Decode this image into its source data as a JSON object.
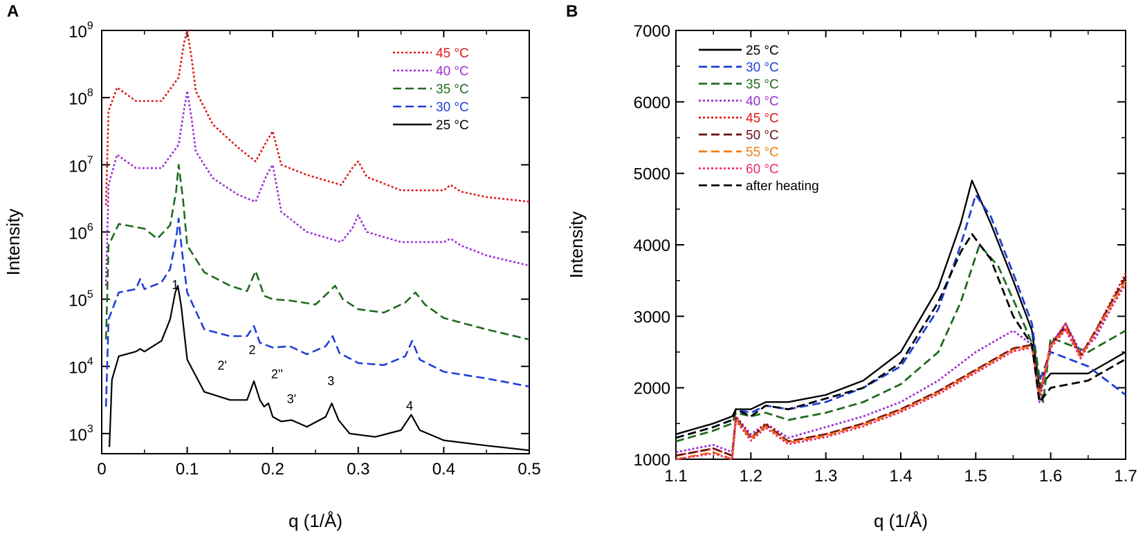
{
  "chart_data": [
    {
      "type": "line",
      "panel": "A",
      "xlabel": "q (1/Å)",
      "ylabel": "Intensity",
      "xlim": [
        0,
        0.5
      ],
      "ylim_log10": [
        2.7,
        9
      ],
      "yscale": "log",
      "xticks": [
        "0",
        "0.1",
        "0.2",
        "0.3",
        "0.4",
        "0.5"
      ],
      "yticks_exp": [
        "3",
        "4",
        "5",
        "6",
        "7",
        "8",
        "9"
      ],
      "ytick_base": "10",
      "legend": [
        "45 °C",
        "40 °C",
        "35 °C",
        "30 °C",
        "25 °C"
      ],
      "peak_labels": [
        {
          "text": "1",
          "q": 0.086,
          "log10": 5.15
        },
        {
          "text": "2'",
          "q": 0.141,
          "log10": 3.95
        },
        {
          "text": "2",
          "q": 0.176,
          "log10": 4.18
        },
        {
          "text": "2''",
          "q": 0.205,
          "log10": 3.82
        },
        {
          "text": "3'",
          "q": 0.222,
          "log10": 3.45
        },
        {
          "text": "3",
          "q": 0.268,
          "log10": 3.72
        },
        {
          "text": "4",
          "q": 0.36,
          "log10": 3.35
        }
      ],
      "series": [
        {
          "name": "25 °C",
          "color": "#000000",
          "dash": "solid",
          "q": [
            0.009,
            0.012,
            0.02,
            0.04,
            0.045,
            0.05,
            0.07,
            0.08,
            0.086,
            0.089,
            0.093,
            0.1,
            0.12,
            0.15,
            0.17,
            0.178,
            0.185,
            0.19,
            0.195,
            0.2,
            0.21,
            0.222,
            0.24,
            0.262,
            0.269,
            0.277,
            0.29,
            0.32,
            0.35,
            0.362,
            0.372,
            0.4,
            0.45,
            0.5
          ],
          "log10": [
            2.8,
            3.8,
            4.15,
            4.22,
            4.26,
            4.22,
            4.38,
            4.7,
            5.1,
            5.2,
            4.9,
            4.1,
            3.62,
            3.5,
            3.5,
            3.78,
            3.5,
            3.4,
            3.45,
            3.25,
            3.18,
            3.2,
            3.1,
            3.25,
            3.45,
            3.2,
            3.0,
            2.95,
            3.05,
            3.28,
            3.05,
            2.9,
            2.82,
            2.75
          ]
        },
        {
          "name": "30 °C",
          "color": "#1f3fd6",
          "dash": "dashed",
          "q": [
            0.005,
            0.008,
            0.02,
            0.04,
            0.045,
            0.05,
            0.07,
            0.08,
            0.087,
            0.09,
            0.094,
            0.1,
            0.12,
            0.15,
            0.17,
            0.178,
            0.185,
            0.2,
            0.22,
            0.24,
            0.262,
            0.27,
            0.278,
            0.3,
            0.33,
            0.355,
            0.363,
            0.372,
            0.4,
            0.45,
            0.5
          ],
          "log10": [
            3.4,
            4.7,
            5.1,
            5.15,
            5.3,
            5.15,
            5.25,
            5.45,
            5.9,
            6.2,
            5.7,
            5.1,
            4.55,
            4.45,
            4.45,
            4.6,
            4.35,
            4.28,
            4.3,
            4.18,
            4.3,
            4.45,
            4.2,
            4.05,
            4.02,
            4.15,
            4.38,
            4.1,
            3.92,
            3.82,
            3.7
          ]
        },
        {
          "name": "35 °C",
          "color": "#1e6a1e",
          "dash": "dashed",
          "q": [
            0.005,
            0.008,
            0.02,
            0.05,
            0.065,
            0.08,
            0.087,
            0.09,
            0.095,
            0.1,
            0.12,
            0.15,
            0.17,
            0.18,
            0.19,
            0.2,
            0.22,
            0.25,
            0.265,
            0.273,
            0.282,
            0.3,
            0.33,
            0.355,
            0.367,
            0.378,
            0.4,
            0.45,
            0.5
          ],
          "log10": [
            4.4,
            5.8,
            6.12,
            6.05,
            5.9,
            6.1,
            6.6,
            7.0,
            6.5,
            5.8,
            5.4,
            5.2,
            5.12,
            5.42,
            5.05,
            5.0,
            4.98,
            4.92,
            5.1,
            5.2,
            5.0,
            4.85,
            4.8,
            4.95,
            5.1,
            4.92,
            4.72,
            4.55,
            4.4
          ]
        },
        {
          "name": "40 °C",
          "color": "#9b2fd6",
          "dash": "dotted",
          "q": [
            0.005,
            0.008,
            0.018,
            0.04,
            0.07,
            0.09,
            0.096,
            0.1,
            0.105,
            0.11,
            0.13,
            0.16,
            0.18,
            0.193,
            0.2,
            0.21,
            0.24,
            0.28,
            0.293,
            0.3,
            0.31,
            0.35,
            0.4,
            0.408,
            0.42,
            0.45,
            0.5
          ],
          "log10": [
            5.2,
            6.7,
            7.15,
            6.95,
            6.95,
            7.3,
            7.8,
            8.1,
            7.7,
            7.2,
            6.8,
            6.55,
            6.45,
            6.85,
            7.0,
            6.3,
            6.0,
            5.85,
            6.05,
            6.25,
            6.0,
            5.85,
            5.85,
            5.9,
            5.8,
            5.65,
            5.5
          ]
        },
        {
          "name": "45 °C",
          "color": "#e01818",
          "dash": "dotted",
          "q": [
            0.005,
            0.008,
            0.018,
            0.04,
            0.07,
            0.09,
            0.096,
            0.1,
            0.105,
            0.11,
            0.13,
            0.16,
            0.18,
            0.193,
            0.2,
            0.21,
            0.24,
            0.28,
            0.293,
            0.3,
            0.31,
            0.35,
            0.4,
            0.408,
            0.42,
            0.45,
            0.5
          ],
          "log10": [
            6.4,
            7.8,
            8.15,
            7.95,
            7.95,
            8.3,
            8.8,
            9.0,
            8.6,
            8.1,
            7.6,
            7.25,
            7.05,
            7.35,
            7.5,
            7.0,
            6.85,
            6.7,
            6.95,
            7.05,
            6.82,
            6.62,
            6.62,
            6.7,
            6.6,
            6.52,
            6.45
          ]
        }
      ]
    },
    {
      "type": "line",
      "panel": "B",
      "xlabel": "q (1/Å)",
      "ylabel": "Intensity",
      "xlim": [
        1.1,
        1.7
      ],
      "ylim": [
        1000,
        7000
      ],
      "xticks": [
        "1.1",
        "1.2",
        "1.3",
        "1.4",
        "1.5",
        "1.6",
        "1.7"
      ],
      "yticks": [
        "1000",
        "2000",
        "3000",
        "4000",
        "5000",
        "6000",
        "7000"
      ],
      "legend": [
        "25 °C",
        "30 °C",
        "35 °C",
        "40 °C",
        "45 °C",
        "50 °C",
        "55 °C",
        "60 °C",
        "after heating"
      ],
      "series": [
        {
          "name": "25 °C",
          "color": "#000000",
          "dash": "solid",
          "q": [
            1.1,
            1.15,
            1.175,
            1.18,
            1.2,
            1.22,
            1.25,
            1.3,
            1.35,
            1.4,
            1.45,
            1.48,
            1.495,
            1.52,
            1.55,
            1.575,
            1.585,
            1.6,
            1.65,
            1.7
          ],
          "y": [
            1350,
            1500,
            1600,
            1700,
            1700,
            1800,
            1800,
            1900,
            2100,
            2500,
            3400,
            4300,
            4900,
            4300,
            3500,
            2800,
            2000,
            2200,
            2200,
            2500
          ]
        },
        {
          "name": "30 °C",
          "color": "#1f3fd6",
          "dash": "dashed",
          "q": [
            1.1,
            1.15,
            1.175,
            1.18,
            1.2,
            1.22,
            1.25,
            1.3,
            1.35,
            1.4,
            1.45,
            1.48,
            1.5,
            1.52,
            1.55,
            1.575,
            1.585,
            1.6,
            1.65,
            1.7
          ],
          "y": [
            1300,
            1450,
            1550,
            1700,
            1650,
            1750,
            1700,
            1800,
            2000,
            2300,
            3100,
            4000,
            4700,
            4400,
            3600,
            2900,
            2100,
            2500,
            2300,
            1900
          ]
        },
        {
          "name": "35 °C",
          "color": "#1e6a1e",
          "dash": "dashed",
          "q": [
            1.1,
            1.15,
            1.175,
            1.18,
            1.2,
            1.22,
            1.25,
            1.3,
            1.35,
            1.4,
            1.45,
            1.48,
            1.505,
            1.53,
            1.56,
            1.58,
            1.59,
            1.6,
            1.65,
            1.7
          ],
          "y": [
            1250,
            1400,
            1500,
            1650,
            1600,
            1650,
            1550,
            1650,
            1800,
            2050,
            2500,
            3200,
            4000,
            3700,
            3000,
            2500,
            1800,
            2700,
            2500,
            2800
          ]
        },
        {
          "name": "40 °C",
          "color": "#9b2fd6",
          "dash": "dotted",
          "q": [
            1.1,
            1.15,
            1.175,
            1.18,
            1.2,
            1.22,
            1.25,
            1.3,
            1.35,
            1.4,
            1.45,
            1.5,
            1.55,
            1.575,
            1.585,
            1.6,
            1.62,
            1.64,
            1.66,
            1.7
          ],
          "y": [
            1100,
            1200,
            1100,
            1600,
            1350,
            1500,
            1300,
            1450,
            1600,
            1800,
            2100,
            2500,
            2800,
            2600,
            1800,
            2600,
            2900,
            2500,
            2700,
            3500
          ]
        },
        {
          "name": "45 °C",
          "color": "#e01818",
          "dash": "dotted",
          "q": [
            1.1,
            1.15,
            1.175,
            1.18,
            1.2,
            1.22,
            1.25,
            1.3,
            1.35,
            1.4,
            1.45,
            1.5,
            1.55,
            1.575,
            1.585,
            1.6,
            1.62,
            1.64,
            1.66,
            1.7
          ],
          "y": [
            1050,
            1150,
            1050,
            1600,
            1300,
            1500,
            1250,
            1350,
            1500,
            1700,
            1950,
            2250,
            2550,
            2600,
            1900,
            2600,
            2900,
            2450,
            2800,
            3600
          ]
        },
        {
          "name": "50 °C",
          "color": "#6b1010",
          "dash": "dashed",
          "q": [
            1.1,
            1.15,
            1.175,
            1.18,
            1.2,
            1.22,
            1.25,
            1.3,
            1.35,
            1.4,
            1.45,
            1.5,
            1.55,
            1.575,
            1.585,
            1.6,
            1.62,
            1.64,
            1.66,
            1.7
          ],
          "y": [
            1050,
            1150,
            1050,
            1580,
            1300,
            1480,
            1250,
            1350,
            1500,
            1700,
            1950,
            2250,
            2550,
            2600,
            1900,
            2600,
            2850,
            2450,
            2800,
            3550
          ]
        },
        {
          "name": "55 °C",
          "color": "#f07a10",
          "dash": "dashed",
          "q": [
            1.1,
            1.15,
            1.175,
            1.18,
            1.2,
            1.22,
            1.25,
            1.3,
            1.35,
            1.4,
            1.45,
            1.5,
            1.55,
            1.575,
            1.585,
            1.6,
            1.62,
            1.64,
            1.66,
            1.7
          ],
          "y": [
            1000,
            1100,
            1000,
            1560,
            1280,
            1460,
            1230,
            1330,
            1480,
            1680,
            1930,
            2230,
            2530,
            2580,
            1880,
            2580,
            2830,
            2430,
            2780,
            3500
          ]
        },
        {
          "name": "60 °C",
          "color": "#f0286e",
          "dash": "dotted",
          "q": [
            1.1,
            1.15,
            1.175,
            1.18,
            1.2,
            1.22,
            1.25,
            1.3,
            1.35,
            1.4,
            1.45,
            1.5,
            1.55,
            1.575,
            1.585,
            1.6,
            1.62,
            1.64,
            1.66,
            1.7
          ],
          "y": [
            1000,
            1080,
            1000,
            1540,
            1260,
            1440,
            1210,
            1310,
            1460,
            1660,
            1910,
            2210,
            2510,
            2560,
            1860,
            2560,
            2810,
            2410,
            2760,
            3450
          ]
        },
        {
          "name": "after heating",
          "color": "#000000",
          "dash": "dashed",
          "q": [
            1.1,
            1.15,
            1.175,
            1.18,
            1.2,
            1.22,
            1.25,
            1.3,
            1.35,
            1.4,
            1.45,
            1.48,
            1.495,
            1.52,
            1.55,
            1.575,
            1.585,
            1.6,
            1.65,
            1.7
          ],
          "y": [
            1300,
            1450,
            1550,
            1700,
            1600,
            1750,
            1700,
            1850,
            2000,
            2350,
            3200,
            3900,
            4150,
            3800,
            3000,
            2600,
            1800,
            2000,
            2100,
            2400
          ]
        }
      ]
    }
  ]
}
